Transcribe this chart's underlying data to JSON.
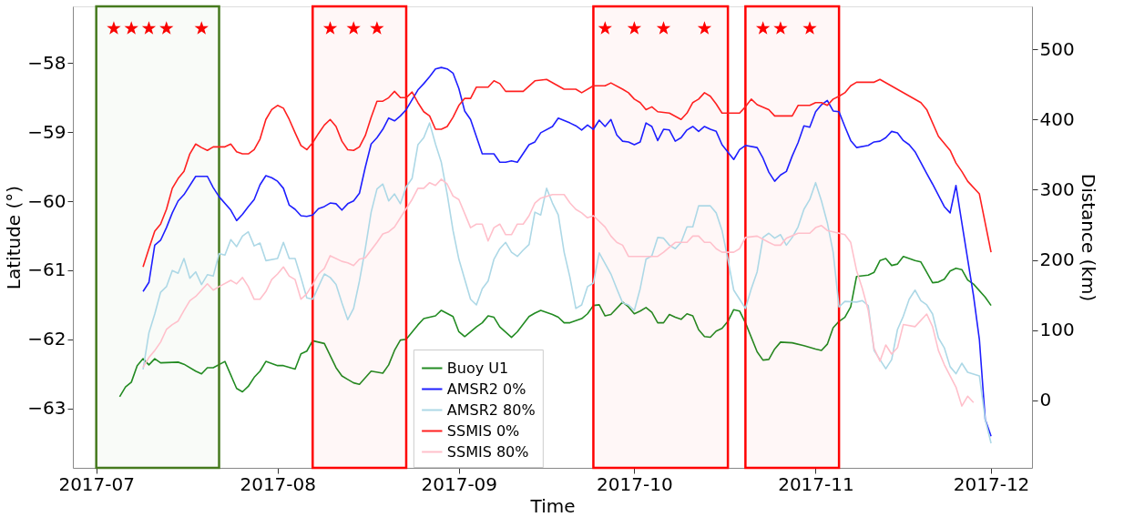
{
  "chart_data": {
    "type": "line",
    "xlabel": "Time",
    "ylabel": "Latitude (°)",
    "y2label": "Distance (km)",
    "xlim": [
      "2017-06-27",
      "2017-12-08"
    ],
    "xticks": [
      "2017-07",
      "2017-08",
      "2017-09",
      "2017-10",
      "2017-11",
      "2017-12"
    ],
    "ylim": [
      -63.86,
      -57.18
    ],
    "yticks": [
      -63,
      -62,
      -61,
      -60,
      -59,
      -58
    ],
    "y2lim": [
      -96,
      561
    ],
    "y2ticks": [
      0,
      100,
      200,
      300,
      400,
      500
    ],
    "grid": false,
    "legend": "bottom",
    "bands": [
      {
        "axis": "x",
        "from": "2017-07-01",
        "to": "2017-07-22",
        "color": "#467a1e"
      },
      {
        "axis": "x",
        "from": "2017-08-07",
        "to": "2017-08-23",
        "color": "#ff0000"
      },
      {
        "axis": "x",
        "from": "2017-09-24",
        "to": "2017-10-17",
        "color": "#ff0000"
      },
      {
        "axis": "x",
        "from": "2017-10-20",
        "to": "2017-11-05",
        "color": "#ff0000"
      }
    ],
    "series": [
      {
        "name": "Buoy U1",
        "color": "#228b22",
        "x": [
          "2017-07-05",
          "2017-07-06",
          "2017-07-07",
          "2017-07-08",
          "2017-07-09",
          "2017-07-10",
          "2017-07-11",
          "2017-07-12",
          "2017-07-15",
          "2017-07-16",
          "2017-07-18",
          "2017-07-19",
          "2017-07-20",
          "2017-07-21",
          "2017-07-23",
          "2017-07-25",
          "2017-07-26",
          "2017-07-27",
          "2017-07-28",
          "2017-07-29",
          "2017-07-30",
          "2017-08-01",
          "2017-08-02",
          "2017-08-04",
          "2017-08-05",
          "2017-08-06",
          "2017-08-07",
          "2017-08-09",
          "2017-08-11",
          "2017-08-12",
          "2017-08-13",
          "2017-08-14",
          "2017-08-15",
          "2017-08-17",
          "2017-08-19",
          "2017-08-20",
          "2017-08-21",
          "2017-08-22",
          "2017-08-23",
          "2017-08-25",
          "2017-08-26",
          "2017-08-28",
          "2017-08-29",
          "2017-08-31",
          "2017-09-01",
          "2017-09-02",
          "2017-09-04",
          "2017-09-05",
          "2017-09-06",
          "2017-09-07",
          "2017-09-08",
          "2017-09-10",
          "2017-09-11",
          "2017-09-13",
          "2017-09-14",
          "2017-09-15",
          "2017-09-17",
          "2017-09-18",
          "2017-09-19",
          "2017-09-20",
          "2017-09-22",
          "2017-09-23",
          "2017-09-24",
          "2017-09-25",
          "2017-09-26",
          "2017-09-27",
          "2017-09-29",
          "2017-09-30",
          "2017-10-01",
          "2017-10-02",
          "2017-10-03",
          "2017-10-04",
          "2017-10-05",
          "2017-10-06",
          "2017-10-07",
          "2017-10-08",
          "2017-10-09",
          "2017-10-10",
          "2017-10-11",
          "2017-10-12",
          "2017-10-13",
          "2017-10-14",
          "2017-10-15",
          "2017-10-16",
          "2017-10-17",
          "2017-10-18",
          "2017-10-19",
          "2017-10-20",
          "2017-10-22",
          "2017-10-23",
          "2017-10-24",
          "2017-10-25",
          "2017-10-26",
          "2017-10-28",
          "2017-10-30",
          "2017-11-01",
          "2017-11-02",
          "2017-11-03",
          "2017-11-04",
          "2017-11-05",
          "2017-11-06",
          "2017-11-07",
          "2017-11-08",
          "2017-11-10",
          "2017-11-11",
          "2017-11-12",
          "2017-11-13",
          "2017-11-14",
          "2017-11-15",
          "2017-11-16",
          "2017-11-18",
          "2017-11-19",
          "2017-11-21",
          "2017-11-22",
          "2017-11-23",
          "2017-11-24",
          "2017-11-25",
          "2017-11-26",
          "2017-11-27",
          "2017-11-28",
          "2017-11-30",
          "2017-12-01"
        ],
        "values": [
          -62.83,
          -62.69,
          -62.62,
          -62.38,
          -62.28,
          -62.37,
          -62.28,
          -62.34,
          -62.33,
          -62.36,
          -62.46,
          -62.5,
          -62.41,
          -62.41,
          -62.32,
          -62.71,
          -62.76,
          -62.68,
          -62.55,
          -62.46,
          -62.32,
          -62.38,
          -62.38,
          -62.43,
          -62.21,
          -62.17,
          -62.02,
          -62.06,
          -62.41,
          -62.53,
          -62.58,
          -62.63,
          -62.65,
          -62.46,
          -62.49,
          -62.37,
          -62.16,
          -62.01,
          -62.0,
          -61.79,
          -61.7,
          -61.66,
          -61.58,
          -61.67,
          -61.89,
          -61.96,
          -61.82,
          -61.76,
          -61.66,
          -61.68,
          -61.82,
          -61.97,
          -61.89,
          -61.67,
          -61.62,
          -61.58,
          -61.64,
          -61.68,
          -61.76,
          -61.76,
          -61.7,
          -61.63,
          -61.51,
          -61.5,
          -61.66,
          -61.64,
          -61.46,
          -61.53,
          -61.63,
          -61.59,
          -61.54,
          -61.61,
          -61.76,
          -61.76,
          -61.64,
          -61.68,
          -61.71,
          -61.63,
          -61.66,
          -61.86,
          -61.96,
          -61.97,
          -61.88,
          -61.84,
          -61.74,
          -61.57,
          -61.59,
          -61.76,
          -62.18,
          -62.3,
          -62.29,
          -62.14,
          -62.04,
          -62.05,
          -62.09,
          -62.14,
          -62.16,
          -62.07,
          -61.83,
          -61.74,
          -61.68,
          -61.53,
          -61.09,
          -61.07,
          -61.03,
          -60.86,
          -60.83,
          -60.93,
          -60.91,
          -60.8,
          -60.86,
          -60.88,
          -61.18,
          -61.17,
          -61.13,
          -61.01,
          -60.97,
          -60.99,
          -61.14,
          -61.2,
          -61.39,
          -61.51
        ]
      },
      {
        "name": "AMSR2 0%",
        "color": "#1f1fff",
        "axis": "y2",
        "x": [
          "2017-07-09",
          "2017-07-10",
          "2017-07-11",
          "2017-07-12",
          "2017-07-13",
          "2017-07-14",
          "2017-07-15",
          "2017-07-16",
          "2017-07-18",
          "2017-07-20",
          "2017-07-21",
          "2017-07-22",
          "2017-07-24",
          "2017-07-25",
          "2017-07-26",
          "2017-07-27",
          "2017-07-28",
          "2017-07-29",
          "2017-07-30",
          "2017-07-31",
          "2017-08-01",
          "2017-08-02",
          "2017-08-03",
          "2017-08-04",
          "2017-08-05",
          "2017-08-06",
          "2017-08-07",
          "2017-08-08",
          "2017-08-09",
          "2017-08-10",
          "2017-08-11",
          "2017-08-12",
          "2017-08-13",
          "2017-08-14",
          "2017-08-15",
          "2017-08-16",
          "2017-08-17",
          "2017-08-18",
          "2017-08-19",
          "2017-08-20",
          "2017-08-21",
          "2017-08-22",
          "2017-08-23",
          "2017-08-25",
          "2017-08-26",
          "2017-08-27",
          "2017-08-28",
          "2017-08-29",
          "2017-08-30",
          "2017-08-31",
          "2017-09-01",
          "2017-09-02",
          "2017-09-03",
          "2017-09-05",
          "2017-09-06",
          "2017-09-07",
          "2017-09-08",
          "2017-09-09",
          "2017-09-10",
          "2017-09-11",
          "2017-09-13",
          "2017-09-14",
          "2017-09-15",
          "2017-09-17",
          "2017-09-18",
          "2017-09-20",
          "2017-09-21",
          "2017-09-22",
          "2017-09-23",
          "2017-09-24",
          "2017-09-25",
          "2017-09-26",
          "2017-09-27",
          "2017-09-28",
          "2017-09-29",
          "2017-09-30",
          "2017-10-01",
          "2017-10-02",
          "2017-10-03",
          "2017-10-04",
          "2017-10-05",
          "2017-10-06",
          "2017-10-07",
          "2017-10-08",
          "2017-10-09",
          "2017-10-10",
          "2017-10-11",
          "2017-10-12",
          "2017-10-13",
          "2017-10-14",
          "2017-10-15",
          "2017-10-16",
          "2017-10-18",
          "2017-10-19",
          "2017-10-20",
          "2017-10-22",
          "2017-10-23",
          "2017-10-24",
          "2017-10-25",
          "2017-10-26",
          "2017-10-27",
          "2017-10-28",
          "2017-10-29",
          "2017-10-30",
          "2017-10-31",
          "2017-11-01",
          "2017-11-02",
          "2017-11-03",
          "2017-11-04",
          "2017-11-05",
          "2017-11-06",
          "2017-11-07",
          "2017-11-08",
          "2017-11-10",
          "2017-11-11",
          "2017-11-12",
          "2017-11-13",
          "2017-11-14",
          "2017-11-15",
          "2017-11-16",
          "2017-11-17",
          "2017-11-18",
          "2017-11-20",
          "2017-11-21",
          "2017-11-23",
          "2017-11-24",
          "2017-11-25",
          "2017-11-26",
          "2017-11-27",
          "2017-11-28",
          "2017-11-29",
          "2017-11-30",
          "2017-12-01"
        ],
        "values": [
          155,
          168,
          221,
          228,
          246,
          267,
          284,
          293,
          319,
          319,
          303,
          290,
          271,
          256,
          265,
          276,
          286,
          307,
          320,
          317,
          312,
          302,
          278,
          272,
          263,
          262,
          264,
          273,
          276,
          281,
          280,
          271,
          280,
          284,
          295,
          332,
          365,
          374,
          386,
          402,
          398,
          405,
          414,
          442,
          451,
          461,
          472,
          474,
          472,
          466,
          444,
          412,
          400,
          351,
          351,
          351,
          339,
          339,
          341,
          339,
          364,
          368,
          381,
          390,
          402,
          395,
          391,
          385,
          392,
          386,
          399,
          390,
          400,
          378,
          369,
          368,
          364,
          368,
          395,
          390,
          370,
          386,
          385,
          369,
          374,
          385,
          390,
          383,
          390,
          386,
          383,
          364,
          343,
          357,
          363,
          360,
          345,
          325,
          312,
          321,
          326,
          348,
          367,
          391,
          389,
          411,
          421,
          427,
          412,
          411,
          390,
          370,
          360,
          363,
          368,
          369,
          374,
          383,
          381,
          370,
          364,
          354,
          323,
          308,
          276,
          267,
          306,
          253,
          201,
          149,
          87,
          -27,
          -51
        ]
      },
      {
        "name": "AMSR2 80%",
        "color": "#add8e6",
        "axis": "y2",
        "x": [
          "2017-07-09",
          "2017-07-10",
          "2017-07-11",
          "2017-07-12",
          "2017-07-13",
          "2017-07-14",
          "2017-07-15",
          "2017-07-16",
          "2017-07-17",
          "2017-07-18",
          "2017-07-19",
          "2017-07-20",
          "2017-07-21",
          "2017-07-22",
          "2017-07-23",
          "2017-07-24",
          "2017-07-25",
          "2017-07-26",
          "2017-07-27",
          "2017-07-28",
          "2017-07-29",
          "2017-07-30",
          "2017-08-01",
          "2017-08-02",
          "2017-08-03",
          "2017-08-04",
          "2017-08-05",
          "2017-08-06",
          "2017-08-07",
          "2017-08-08",
          "2017-08-09",
          "2017-08-10",
          "2017-08-11",
          "2017-08-12",
          "2017-08-13",
          "2017-08-14",
          "2017-08-15",
          "2017-08-16",
          "2017-08-17",
          "2017-08-18",
          "2017-08-19",
          "2017-08-20",
          "2017-08-21",
          "2017-08-22",
          "2017-08-23",
          "2017-08-24",
          "2017-08-25",
          "2017-08-26",
          "2017-08-27",
          "2017-08-28",
          "2017-08-29",
          "2017-08-30",
          "2017-08-31",
          "2017-09-01",
          "2017-09-03",
          "2017-09-04",
          "2017-09-05",
          "2017-09-06",
          "2017-09-07",
          "2017-09-08",
          "2017-09-09",
          "2017-09-10",
          "2017-09-11",
          "2017-09-12",
          "2017-09-13",
          "2017-09-14",
          "2017-09-15",
          "2017-09-16",
          "2017-09-17",
          "2017-09-18",
          "2017-09-19",
          "2017-09-20",
          "2017-09-21",
          "2017-09-22",
          "2017-09-23",
          "2017-09-24",
          "2017-09-25",
          "2017-09-27",
          "2017-09-28",
          "2017-09-29",
          "2017-09-30",
          "2017-10-01",
          "2017-10-02",
          "2017-10-03",
          "2017-10-04",
          "2017-10-05",
          "2017-10-06",
          "2017-10-07",
          "2017-10-08",
          "2017-10-09",
          "2017-10-10",
          "2017-10-11",
          "2017-10-12",
          "2017-10-14",
          "2017-10-15",
          "2017-10-16",
          "2017-10-17",
          "2017-10-18",
          "2017-10-19",
          "2017-10-20",
          "2017-10-21",
          "2017-10-22",
          "2017-10-23",
          "2017-10-24",
          "2017-10-25",
          "2017-10-26",
          "2017-10-27",
          "2017-10-28",
          "2017-10-29",
          "2017-10-30",
          "2017-10-31",
          "2017-11-01",
          "2017-11-02",
          "2017-11-03",
          "2017-11-04",
          "2017-11-05",
          "2017-11-06",
          "2017-11-08",
          "2017-11-09",
          "2017-11-10",
          "2017-11-11",
          "2017-11-12",
          "2017-11-13",
          "2017-11-14",
          "2017-11-15",
          "2017-11-16",
          "2017-11-17",
          "2017-11-18",
          "2017-11-19",
          "2017-11-20",
          "2017-11-21",
          "2017-11-22",
          "2017-11-23",
          "2017-11-24",
          "2017-11-25",
          "2017-11-26",
          "2017-11-27",
          "2017-11-29",
          "2017-11-30",
          "2017-12-01"
        ],
        "values": [
          44,
          96,
          123,
          154,
          162,
          185,
          181,
          202,
          174,
          183,
          165,
          179,
          177,
          209,
          207,
          229,
          219,
          234,
          240,
          220,
          224,
          199,
          202,
          225,
          202,
          202,
          175,
          146,
          144,
          162,
          180,
          175,
          165,
          139,
          115,
          131,
          170,
          216,
          268,
          301,
          308,
          284,
          294,
          280,
          304,
          316,
          364,
          374,
          395,
          365,
          339,
          294,
          242,
          201,
          144,
          136,
          159,
          170,
          201,
          216,
          225,
          211,
          205,
          214,
          222,
          268,
          264,
          302,
          281,
          264,
          211,
          175,
          131,
          136,
          162,
          167,
          210,
          180,
          159,
          139,
          136,
          128,
          159,
          201,
          206,
          232,
          231,
          221,
          216,
          225,
          247,
          247,
          277,
          277,
          267,
          242,
          201,
          157,
          144,
          131,
          159,
          183,
          232,
          238,
          231,
          236,
          221,
          232,
          247,
          272,
          286,
          310,
          284,
          253,
          211,
          133,
          141,
          140,
          142,
          135,
          71,
          58,
          45,
          58,
          101,
          120,
          144,
          157,
          142,
          136,
          123,
          89,
          75,
          48,
          38,
          53,
          40,
          35,
          -27,
          -61
        ]
      },
      {
        "name": "SSMIS 0%",
        "color": "#ff2020",
        "axis": "y2",
        "x": [
          "2017-07-09",
          "2017-07-10",
          "2017-07-11",
          "2017-07-12",
          "2017-07-13",
          "2017-07-14",
          "2017-07-15",
          "2017-07-16",
          "2017-07-17",
          "2017-07-18",
          "2017-07-19",
          "2017-07-20",
          "2017-07-21",
          "2017-07-23",
          "2017-07-24",
          "2017-07-25",
          "2017-07-26",
          "2017-07-27",
          "2017-07-28",
          "2017-07-29",
          "2017-07-30",
          "2017-07-31",
          "2017-08-01",
          "2017-08-02",
          "2017-08-03",
          "2017-08-04",
          "2017-08-05",
          "2017-08-06",
          "2017-08-07",
          "2017-08-08",
          "2017-08-09",
          "2017-08-10",
          "2017-08-11",
          "2017-08-12",
          "2017-08-13",
          "2017-08-14",
          "2017-08-15",
          "2017-08-16",
          "2017-08-17",
          "2017-08-18",
          "2017-08-19",
          "2017-08-20",
          "2017-08-21",
          "2017-08-22",
          "2017-08-23",
          "2017-08-24",
          "2017-08-25",
          "2017-08-26",
          "2017-08-27",
          "2017-08-28",
          "2017-08-29",
          "2017-08-30",
          "2017-08-31",
          "2017-09-01",
          "2017-09-02",
          "2017-09-03",
          "2017-09-04",
          "2017-09-06",
          "2017-09-07",
          "2017-09-08",
          "2017-09-09",
          "2017-09-12",
          "2017-09-14",
          "2017-09-16",
          "2017-09-19",
          "2017-09-21",
          "2017-09-22",
          "2017-09-24",
          "2017-09-26",
          "2017-09-27",
          "2017-09-29",
          "2017-09-30",
          "2017-10-01",
          "2017-10-02",
          "2017-10-03",
          "2017-10-04",
          "2017-10-05",
          "2017-10-07",
          "2017-10-09",
          "2017-10-10",
          "2017-10-11",
          "2017-10-12",
          "2017-10-13",
          "2017-10-14",
          "2017-10-15",
          "2017-10-16",
          "2017-10-19",
          "2017-10-20",
          "2017-10-21",
          "2017-10-22",
          "2017-10-24",
          "2017-10-25",
          "2017-10-28",
          "2017-10-29",
          "2017-10-31",
          "2017-11-01",
          "2017-11-02",
          "2017-11-03",
          "2017-11-04",
          "2017-11-05",
          "2017-11-06",
          "2017-11-07",
          "2017-11-08",
          "2017-11-11",
          "2017-11-12",
          "2017-11-19",
          "2017-11-20",
          "2017-11-22",
          "2017-11-24",
          "2017-11-25",
          "2017-11-26",
          "2017-11-27",
          "2017-11-29",
          "2017-12-01"
        ],
        "values": [
          190,
          216,
          241,
          251,
          272,
          302,
          316,
          326,
          351,
          365,
          360,
          356,
          361,
          361,
          365,
          354,
          351,
          351,
          357,
          372,
          400,
          414,
          420,
          416,
          400,
          381,
          363,
          357,
          367,
          380,
          392,
          400,
          390,
          369,
          357,
          356,
          361,
          377,
          403,
          426,
          426,
          431,
          440,
          431,
          431,
          439,
          424,
          411,
          405,
          386,
          386,
          390,
          403,
          420,
          430,
          430,
          446,
          446,
          455,
          451,
          440,
          440,
          455,
          457,
          443,
          443,
          438,
          448,
          448,
          452,
          443,
          438,
          429,
          424,
          414,
          418,
          411,
          409,
          400,
          409,
          424,
          429,
          438,
          433,
          422,
          409,
          409,
          418,
          429,
          421,
          414,
          405,
          405,
          420,
          420,
          424,
          424,
          420,
          429,
          433,
          438,
          448,
          453,
          453,
          457,
          424,
          414,
          376,
          356,
          338,
          326,
          312,
          294,
          211
        ]
      },
      {
        "name": "SSMIS 80%",
        "color": "#ffc0cb",
        "axis": "y2",
        "x": [
          "2017-07-09",
          "2017-07-10",
          "2017-07-11",
          "2017-07-12",
          "2017-07-13",
          "2017-07-14",
          "2017-07-15",
          "2017-07-16",
          "2017-07-17",
          "2017-07-18",
          "2017-07-19",
          "2017-07-20",
          "2017-07-21",
          "2017-07-22",
          "2017-07-24",
          "2017-07-25",
          "2017-07-26",
          "2017-07-27",
          "2017-07-28",
          "2017-07-29",
          "2017-07-30",
          "2017-07-31",
          "2017-08-01",
          "2017-08-02",
          "2017-08-03",
          "2017-08-04",
          "2017-08-05",
          "2017-08-06",
          "2017-08-07",
          "2017-08-08",
          "2017-08-09",
          "2017-08-10",
          "2017-08-12",
          "2017-08-13",
          "2017-08-14",
          "2017-08-15",
          "2017-08-16",
          "2017-08-17",
          "2017-08-18",
          "2017-08-19",
          "2017-08-20",
          "2017-08-21",
          "2017-08-22",
          "2017-08-23",
          "2017-08-24",
          "2017-08-25",
          "2017-08-26",
          "2017-08-27",
          "2017-08-28",
          "2017-08-29",
          "2017-08-30",
          "2017-08-31",
          "2017-09-01",
          "2017-09-03",
          "2017-09-04",
          "2017-09-05",
          "2017-09-06",
          "2017-09-07",
          "2017-09-08",
          "2017-09-09",
          "2017-09-10",
          "2017-09-11",
          "2017-09-12",
          "2017-09-13",
          "2017-09-14",
          "2017-09-15",
          "2017-09-17",
          "2017-09-19",
          "2017-09-20",
          "2017-09-21",
          "2017-09-22",
          "2017-09-23",
          "2017-09-24",
          "2017-09-26",
          "2017-09-27",
          "2017-09-28",
          "2017-09-29",
          "2017-09-30",
          "2017-10-05",
          "2017-10-06",
          "2017-10-07",
          "2017-10-08",
          "2017-10-10",
          "2017-10-11",
          "2017-10-12",
          "2017-10-13",
          "2017-10-14",
          "2017-10-15",
          "2017-10-16",
          "2017-10-18",
          "2017-10-19",
          "2017-10-20",
          "2017-10-22",
          "2017-10-24",
          "2017-10-25",
          "2017-10-26",
          "2017-10-27",
          "2017-10-29",
          "2017-10-31",
          "2017-11-01",
          "2017-11-02",
          "2017-11-03",
          "2017-11-04",
          "2017-11-06",
          "2017-11-07",
          "2017-11-08",
          "2017-11-09",
          "2017-11-10",
          "2017-11-11",
          "2017-11-12",
          "2017-11-13",
          "2017-11-14",
          "2017-11-15",
          "2017-11-16",
          "2017-11-18",
          "2017-11-20",
          "2017-11-21",
          "2017-11-22",
          "2017-11-23",
          "2017-11-25",
          "2017-11-26",
          "2017-11-27",
          "2017-11-28"
        ],
        "values": [
          47,
          61,
          71,
          83,
          101,
          108,
          113,
          128,
          142,
          148,
          157,
          166,
          157,
          162,
          171,
          166,
          175,
          162,
          144,
          144,
          155,
          172,
          180,
          190,
          177,
          172,
          144,
          152,
          165,
          180,
          188,
          206,
          198,
          196,
          192,
          201,
          203,
          214,
          225,
          237,
          240,
          247,
          260,
          273,
          286,
          302,
          302,
          310,
          306,
          315,
          308,
          291,
          286,
          246,
          251,
          251,
          227,
          246,
          251,
          236,
          236,
          251,
          251,
          263,
          281,
          288,
          293,
          293,
          281,
          272,
          267,
          260,
          263,
          247,
          234,
          225,
          221,
          205,
          205,
          211,
          218,
          225,
          225,
          234,
          234,
          225,
          225,
          216,
          211,
          211,
          216,
          232,
          234,
          225,
          221,
          221,
          231,
          238,
          238,
          246,
          249,
          242,
          240,
          236,
          225,
          185,
          159,
          128,
          74,
          56,
          79,
          66,
          75,
          108,
          105,
          123,
          105,
          71,
          51,
          19,
          -8,
          6,
          -3
        ]
      },
      {
        "type": "scatter",
        "marker": "star",
        "color": "#ff0000",
        "x": [
          "2017-07-04",
          "2017-07-07",
          "2017-07-10",
          "2017-07-13",
          "2017-07-19",
          "2017-08-10",
          "2017-08-14",
          "2017-08-18",
          "2017-09-26",
          "2017-10-01",
          "2017-10-06",
          "2017-10-13",
          "2017-10-23",
          "2017-10-26",
          "2017-10-31"
        ],
        "values": [
          -57.5,
          -57.5,
          -57.5,
          -57.5,
          -57.5,
          -57.5,
          -57.5,
          -57.5,
          -57.5,
          -57.5,
          -57.5,
          -57.5,
          -57.5,
          -57.5,
          -57.5
        ]
      }
    ]
  }
}
